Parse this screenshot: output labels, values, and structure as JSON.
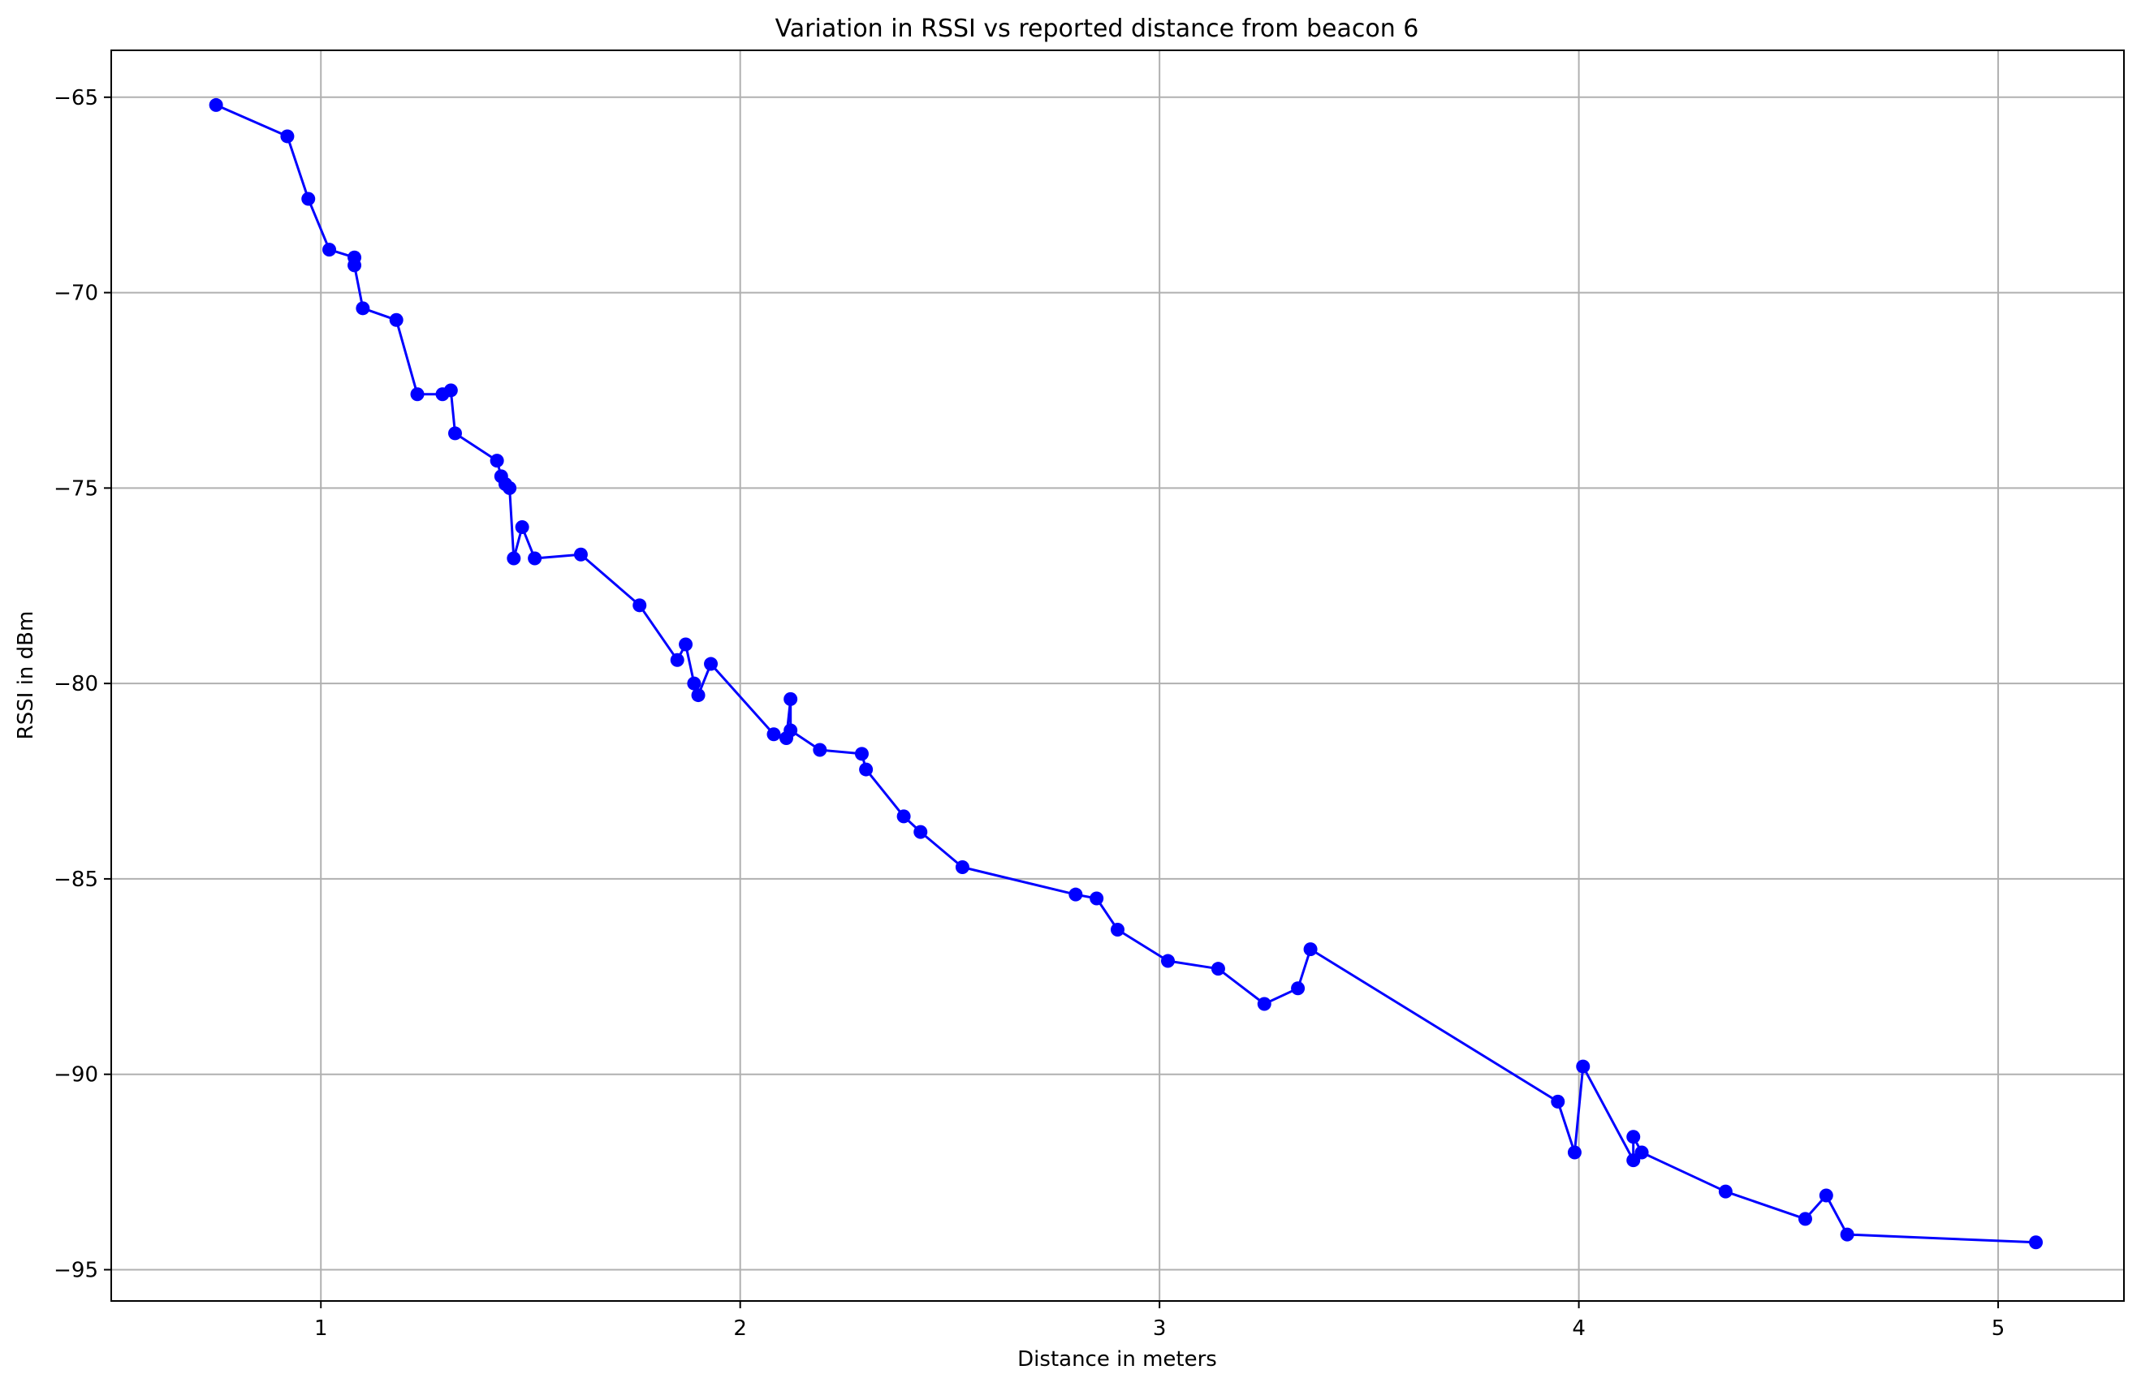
{
  "chart_data": {
    "type": "line",
    "title": "Variation in RSSI vs reported distance from beacon 6",
    "xlabel": "Distance in meters",
    "ylabel": "RSSI in dBm",
    "xlim": [
      0.5,
      5.3
    ],
    "ylim": [
      -95.8,
      -63.8
    ],
    "xticks": [
      1,
      2,
      3,
      4,
      5
    ],
    "yticks": [
      -65,
      -70,
      -75,
      -80,
      -85,
      -90,
      -95
    ],
    "xtick_labels": [
      "1",
      "2",
      "3",
      "4",
      "5"
    ],
    "ytick_labels": [
      "−65",
      "−70",
      "−75",
      "−80",
      "−85",
      "−90",
      "−95"
    ],
    "grid": true,
    "series": [
      {
        "color": "#0000ff",
        "marker": "circle",
        "x": [
          0.75,
          0.92,
          0.97,
          1.02,
          1.08,
          1.08,
          1.1,
          1.18,
          1.23,
          1.29,
          1.31,
          1.32,
          1.42,
          1.43,
          1.44,
          1.45,
          1.46,
          1.48,
          1.51,
          1.62,
          1.76,
          1.85,
          1.87,
          1.89,
          1.9,
          1.93,
          2.08,
          2.11,
          2.12,
          2.12,
          2.19,
          2.29,
          2.3,
          2.39,
          2.43,
          2.53,
          2.8,
          2.85,
          2.9,
          3.02,
          3.14,
          3.25,
          3.33,
          3.36,
          3.95,
          3.99,
          4.01,
          4.13,
          4.13,
          4.15,
          4.35,
          4.54,
          4.59,
          4.64,
          5.09
        ],
        "y": [
          -65.2,
          -66.0,
          -67.6,
          -68.9,
          -69.1,
          -69.3,
          -70.4,
          -70.7,
          -72.6,
          -72.6,
          -72.5,
          -73.6,
          -74.3,
          -74.7,
          -74.9,
          -75.0,
          -76.8,
          -76.0,
          -76.8,
          -76.7,
          -78.0,
          -79.4,
          -79.0,
          -80.0,
          -80.3,
          -79.5,
          -81.3,
          -81.4,
          -80.4,
          -81.2,
          -81.7,
          -81.8,
          -82.2,
          -83.4,
          -83.8,
          -84.7,
          -85.4,
          -85.5,
          -86.3,
          -87.1,
          -87.3,
          -88.2,
          -87.8,
          -86.8,
          -90.7,
          -92.0,
          -89.8,
          -92.2,
          -91.6,
          -92.0,
          -93.0,
          -93.7,
          -93.1,
          -94.1,
          -94.3
        ]
      }
    ]
  }
}
